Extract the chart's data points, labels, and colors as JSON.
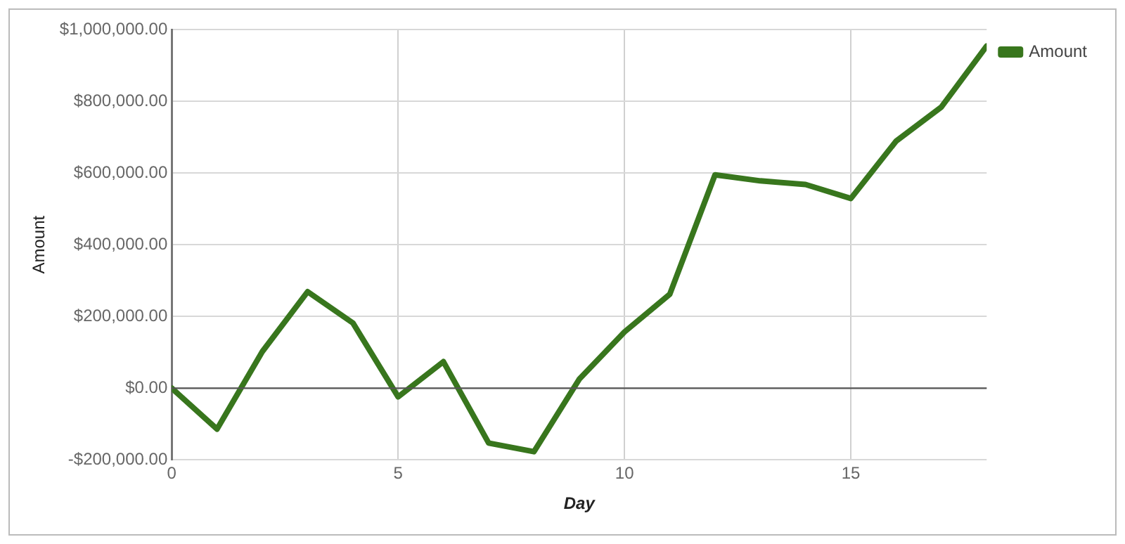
{
  "chart_data": {
    "type": "line",
    "xlabel": "Day",
    "ylabel": "Amount",
    "x": [
      0,
      1,
      2,
      3,
      4,
      5,
      6,
      7,
      8,
      9,
      10,
      11,
      12,
      13,
      14,
      15,
      16,
      17,
      18
    ],
    "series": [
      {
        "name": "Amount",
        "color": "#38761d",
        "values": [
          0,
          -114000,
          102000,
          269000,
          182000,
          -24000,
          74000,
          -153000,
          -177000,
          25000,
          157000,
          262000,
          595000,
          578000,
          568000,
          529000,
          689000,
          784000,
          954000
        ]
      }
    ],
    "xlim": [
      0,
      18
    ],
    "xticks": [
      0,
      5,
      10,
      15
    ],
    "ylim": [
      -200000,
      1000000
    ],
    "yticks": [
      {
        "value": -200000,
        "label": "-$200,000.00"
      },
      {
        "value": 0,
        "label": "$0.00"
      },
      {
        "value": 200000,
        "label": "$200,000.00"
      },
      {
        "value": 400000,
        "label": "$400,000.00"
      },
      {
        "value": 600000,
        "label": "$600,000.00"
      },
      {
        "value": 800000,
        "label": "$800,000.00"
      },
      {
        "value": 1000000,
        "label": "$1,000,000.00"
      }
    ],
    "ref_lines": [
      {
        "axis": "y",
        "value": 0,
        "color": "#555555"
      }
    ],
    "grid": true,
    "legend": "top right",
    "marker": "none",
    "line_style": "solid"
  }
}
